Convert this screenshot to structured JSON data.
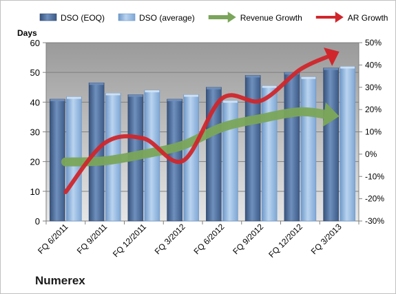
{
  "company": "Numerex",
  "chart_data": {
    "type": "bar",
    "categories": [
      "FQ 6/2011",
      "FQ 9/2011",
      "FQ 12/2011",
      "FQ 3/2012",
      "FQ 6/2012",
      "FQ 9/2012",
      "FQ 12/2012",
      "FQ 3/2013"
    ],
    "series": [
      {
        "name": "DSO (EOQ)",
        "type": "bar",
        "axis": "left",
        "color": "#4f6e9c",
        "values": [
          41,
          46.5,
          42.5,
          41,
          45,
          49,
          50,
          51.5
        ]
      },
      {
        "name": "DSO (average)",
        "type": "bar",
        "axis": "left",
        "color": "#8fb4df",
        "values": [
          41.8,
          43,
          44,
          42.5,
          40.5,
          45.5,
          48.5,
          52
        ]
      },
      {
        "name": "Revenue Growth",
        "type": "line",
        "axis": "right",
        "style": "arrow",
        "color": "#7aa55a",
        "values": [
          -3.5,
          -3,
          0,
          4,
          12,
          16,
          19,
          17
        ]
      },
      {
        "name": "AR Growth",
        "type": "line",
        "axis": "right",
        "style": "arrow",
        "color": "#d0262b",
        "values": [
          -17,
          5,
          7,
          -3,
          25,
          24,
          38,
          46
        ]
      }
    ],
    "ylabel": "Days",
    "ylim": [
      0,
      60
    ],
    "yticks": [
      0,
      10,
      20,
      30,
      40,
      50,
      60
    ],
    "y2lim": [
      -30,
      50
    ],
    "y2ticks": [
      "-30%",
      "-20%",
      "-10%",
      "0%",
      "10%",
      "20%",
      "30%",
      "40%",
      "50%"
    ],
    "grid": true,
    "legend": "top"
  }
}
